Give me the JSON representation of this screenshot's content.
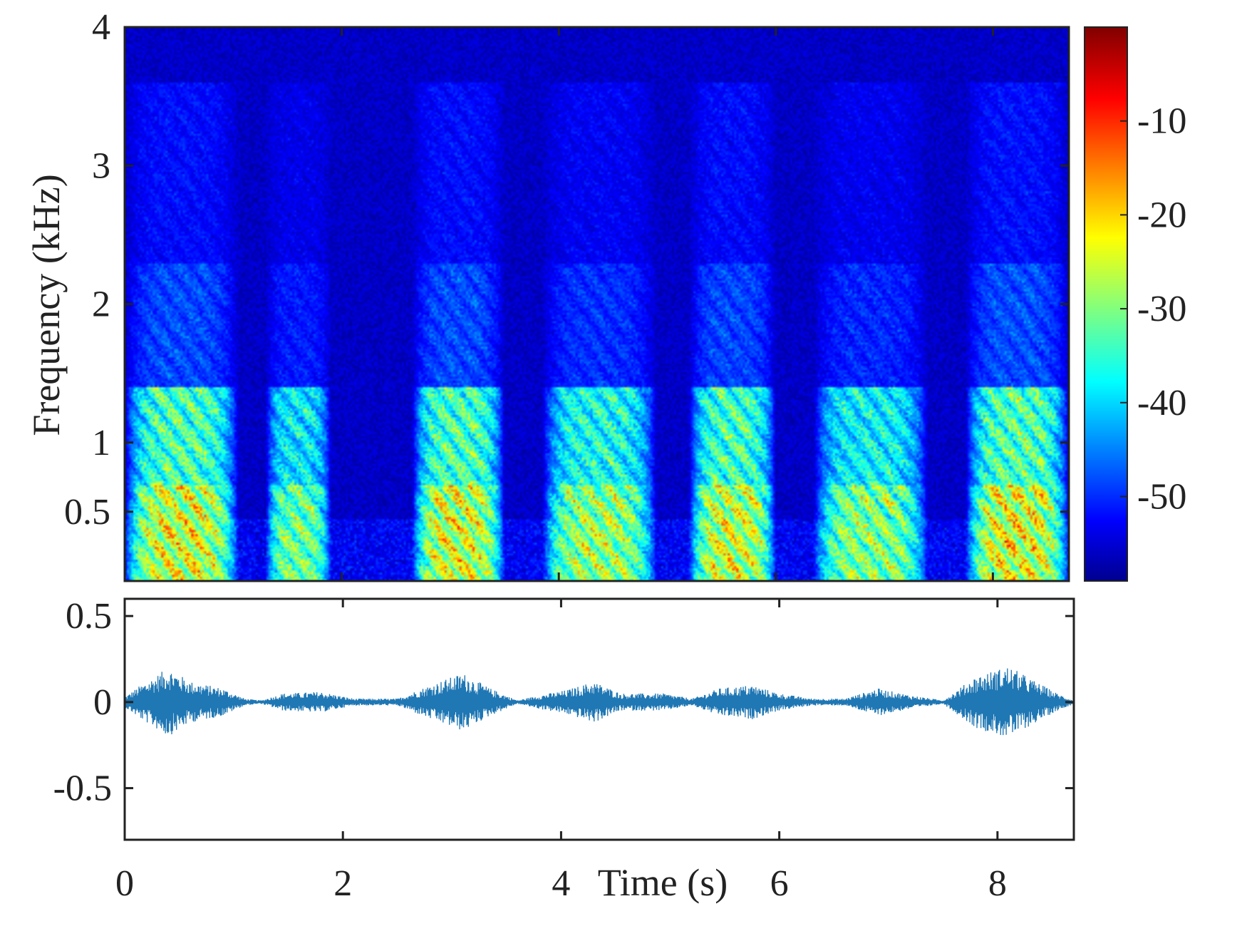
{
  "chart_data": [
    {
      "type": "heatmap",
      "title": "",
      "xlabel": "",
      "ylabel": "Frequency (kHz)",
      "xlim": [
        0,
        8.7
      ],
      "ylim": [
        0,
        4
      ],
      "y_ticks": [
        0.5,
        1,
        2,
        3,
        4
      ],
      "y_tick_labels": [
        "0.5",
        "1",
        "2",
        "3",
        "4"
      ],
      "colorscale": "jet",
      "colorbar": {
        "range": [
          -59,
          0
        ],
        "ticks": [
          -50,
          -40,
          -30,
          -20,
          -10
        ],
        "tick_labels": [
          "-50",
          "-40",
          "-30",
          "-20",
          "-10"
        ]
      },
      "bursts": [
        {
          "start": 0.0,
          "end": 1.05,
          "peak_db": -3
        },
        {
          "start": 1.3,
          "end": 1.9,
          "peak_db": -12
        },
        {
          "start": 2.65,
          "end": 3.5,
          "peak_db": -3
        },
        {
          "start": 3.85,
          "end": 4.9,
          "peak_db": -8
        },
        {
          "start": 5.2,
          "end": 6.0,
          "peak_db": -4
        },
        {
          "start": 6.35,
          "end": 7.4,
          "peak_db": -10
        },
        {
          "start": 7.75,
          "end": 8.7,
          "peak_db": -2
        }
      ]
    },
    {
      "type": "line",
      "title": "",
      "xlabel": "Time (s)",
      "ylabel": "",
      "xlim": [
        0,
        8.7
      ],
      "ylim": [
        -0.8,
        0.6
      ],
      "x_ticks": [
        0,
        2,
        4,
        6,
        8
      ],
      "x_tick_labels": [
        "0",
        "2",
        "4",
        "6",
        "8"
      ],
      "y_ticks": [
        -0.5,
        0,
        0.5
      ],
      "y_tick_labels": [
        "-0.5",
        "0",
        "0.5"
      ],
      "series": [
        {
          "color": "#1f77b4",
          "envelope": [
            {
              "t": 0.0,
              "amp": 0.03
            },
            {
              "t": 0.15,
              "amp": 0.1
            },
            {
              "t": 0.4,
              "amp": 0.2
            },
            {
              "t": 0.6,
              "amp": 0.12
            },
            {
              "t": 0.9,
              "amp": 0.08
            },
            {
              "t": 1.1,
              "amp": 0.02
            },
            {
              "t": 1.25,
              "amp": 0.01
            },
            {
              "t": 1.45,
              "amp": 0.05
            },
            {
              "t": 1.8,
              "amp": 0.06
            },
            {
              "t": 2.1,
              "amp": 0.02
            },
            {
              "t": 2.5,
              "amp": 0.02
            },
            {
              "t": 2.8,
              "amp": 0.1
            },
            {
              "t": 3.1,
              "amp": 0.17
            },
            {
              "t": 3.35,
              "amp": 0.08
            },
            {
              "t": 3.6,
              "amp": 0.01
            },
            {
              "t": 3.8,
              "amp": 0.04
            },
            {
              "t": 4.05,
              "amp": 0.07
            },
            {
              "t": 4.3,
              "amp": 0.12
            },
            {
              "t": 4.55,
              "amp": 0.05
            },
            {
              "t": 4.95,
              "amp": 0.05
            },
            {
              "t": 5.2,
              "amp": 0.02
            },
            {
              "t": 5.45,
              "amp": 0.08
            },
            {
              "t": 5.75,
              "amp": 0.1
            },
            {
              "t": 6.0,
              "amp": 0.05
            },
            {
              "t": 6.3,
              "amp": 0.02
            },
            {
              "t": 6.6,
              "amp": 0.02
            },
            {
              "t": 6.9,
              "amp": 0.08
            },
            {
              "t": 7.2,
              "amp": 0.04
            },
            {
              "t": 7.5,
              "amp": 0.01
            },
            {
              "t": 7.8,
              "amp": 0.15
            },
            {
              "t": 8.1,
              "amp": 0.21
            },
            {
              "t": 8.35,
              "amp": 0.12
            },
            {
              "t": 8.55,
              "amp": 0.05
            },
            {
              "t": 8.7,
              "amp": 0.01
            }
          ]
        }
      ]
    }
  ]
}
